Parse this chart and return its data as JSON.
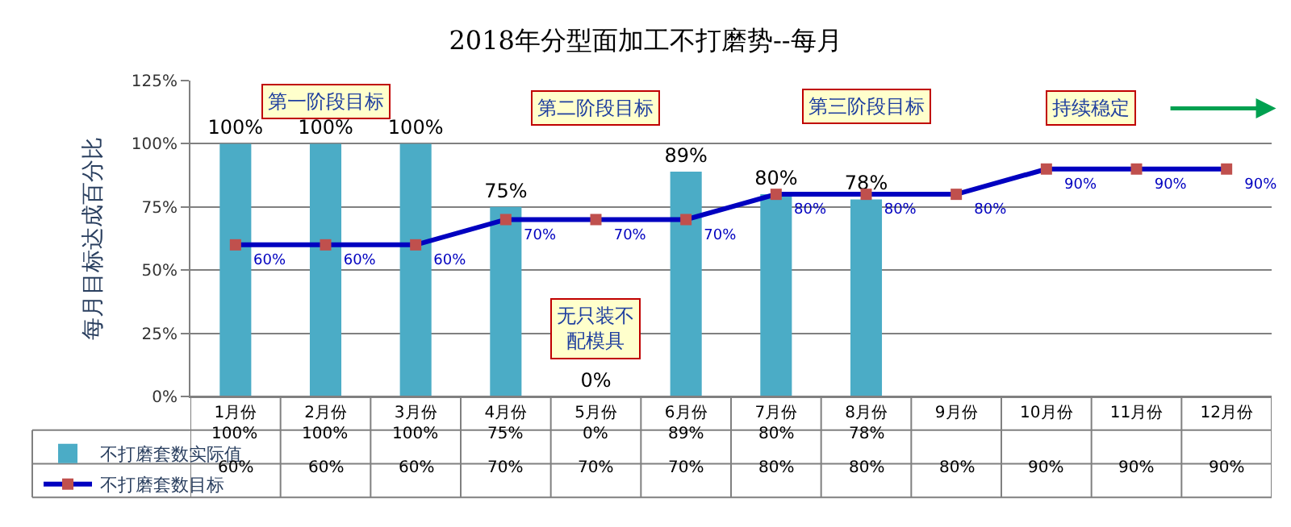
{
  "chart_data": {
    "type": "bar",
    "title": "2018年分型面加工不打磨势--每月",
    "ylabel": "每月目标达成百分比",
    "categories": [
      "1月份",
      "2月份",
      "3月份",
      "4月份",
      "5月份",
      "6月份",
      "7月份",
      "8月份",
      "9月份",
      "10月份",
      "11月份",
      "12月份"
    ],
    "series": [
      {
        "name": "不打磨套数实际值",
        "color": "#4bacc6",
        "values": [
          100,
          100,
          100,
          75,
          0,
          89,
          80,
          78,
          null,
          null,
          null,
          null
        ],
        "value_labels": [
          "100%",
          "100%",
          "100%",
          "75%",
          "0%",
          "89%",
          "80%",
          "78%",
          null,
          null,
          null,
          null
        ]
      },
      {
        "name": "不打磨套数目标",
        "type": "line",
        "color": "#0000c0",
        "colors": [
          "#c0504d",
          "#c0504d",
          "#c0504d",
          "#c0504d",
          "#c0504d",
          "#c0504d",
          "#c0504d",
          "#c0504d",
          "#c0504d",
          "#c0504d",
          "#c0504d",
          "#c0504d"
        ],
        "marker": "square",
        "values": [
          60,
          60,
          60,
          70,
          70,
          70,
          80,
          80,
          80,
          90,
          90,
          90
        ],
        "value_labels": [
          "60%",
          "60%",
          "60%",
          "70%",
          "70%",
          "70%",
          "80%",
          "80%",
          "80%",
          "90%",
          "90%",
          "90%"
        ]
      }
    ],
    "ylim": [
      0,
      125
    ],
    "yticks": [
      {
        "value": 0,
        "label": "0%"
      },
      {
        "value": 25,
        "label": "25%"
      },
      {
        "value": 50,
        "label": "50%"
      },
      {
        "value": 75,
        "label": "75%"
      },
      {
        "value": 100,
        "label": "100%"
      },
      {
        "value": 125,
        "label": "125%"
      }
    ],
    "grid": "y",
    "legend": "bottom left",
    "annotations": [
      "第一阶段目标",
      "第二阶段目标",
      "第三阶段目标",
      "持续稳定",
      "无只装不配模具"
    ]
  }
}
